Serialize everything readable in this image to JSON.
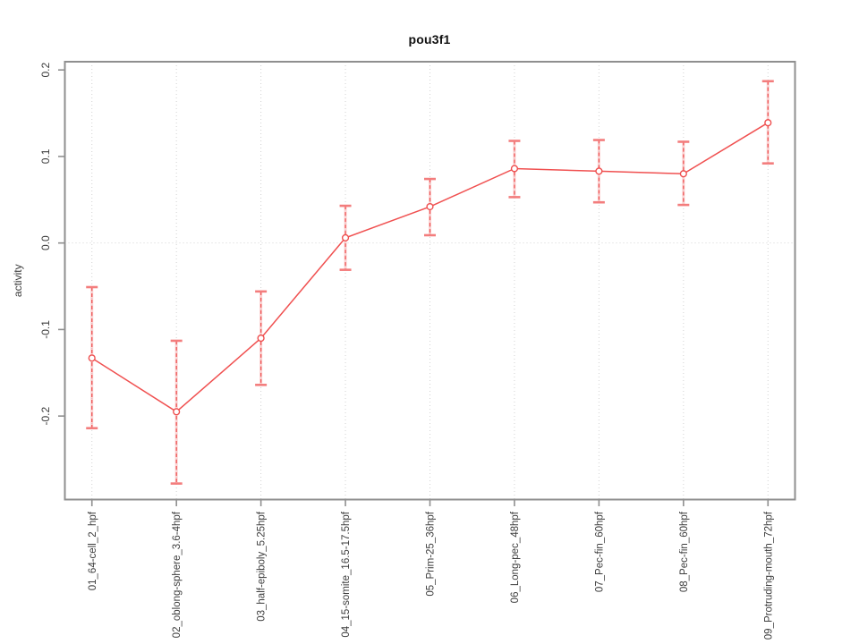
{
  "page": {
    "background": "#ffffff"
  },
  "chart_data": {
    "type": "line",
    "title": "pou3f1",
    "xlabel": "",
    "ylabel": "activity",
    "categories": [
      "01_64-cell_2_hpf",
      "02_oblong-sphere_3.6-4hpf",
      "03_half-epiboly_5.25hpf",
      "04_15-somite_16.5-17.5hpf",
      "05_Prim-25_36hpf",
      "06_Long-pec_48hpf",
      "07_Pec-fin_60hpf",
      "08_Pec-fin_60hpf",
      "09_Protruding-mouth_72hpf"
    ],
    "series": [
      {
        "name": "pou3f1",
        "color": "#f05050",
        "marker": "open-circle",
        "values": [
          -0.133,
          -0.195,
          -0.11,
          0.006,
          0.042,
          0.086,
          0.083,
          0.08,
          0.139
        ],
        "error_upper": [
          -0.051,
          -0.113,
          -0.056,
          0.043,
          0.074,
          0.118,
          0.119,
          0.117,
          0.187
        ],
        "error_lower": [
          -0.214,
          -0.278,
          -0.164,
          -0.031,
          0.009,
          0.053,
          0.047,
          0.044,
          0.092
        ]
      }
    ],
    "yticks": [
      -0.2,
      -0.1,
      0.0,
      0.1,
      0.2
    ],
    "ytick_labels": [
      "-0.2",
      "-0.1",
      "0.0",
      "0.1",
      "0.2"
    ],
    "ylim": [
      -0.2965,
      0.2095
    ],
    "xlim": [
      0.68,
      9.32
    ],
    "grid": {
      "vertical_at_each_category": true,
      "horizontal_at_zero_only": true,
      "style": "dotted",
      "color": "#d2d2d2"
    },
    "axis_color": "#8f8f8f",
    "text_color": "#3d3d3d",
    "error_bar_color": "#ee5555",
    "error_cap_color": "#f37d7d"
  }
}
